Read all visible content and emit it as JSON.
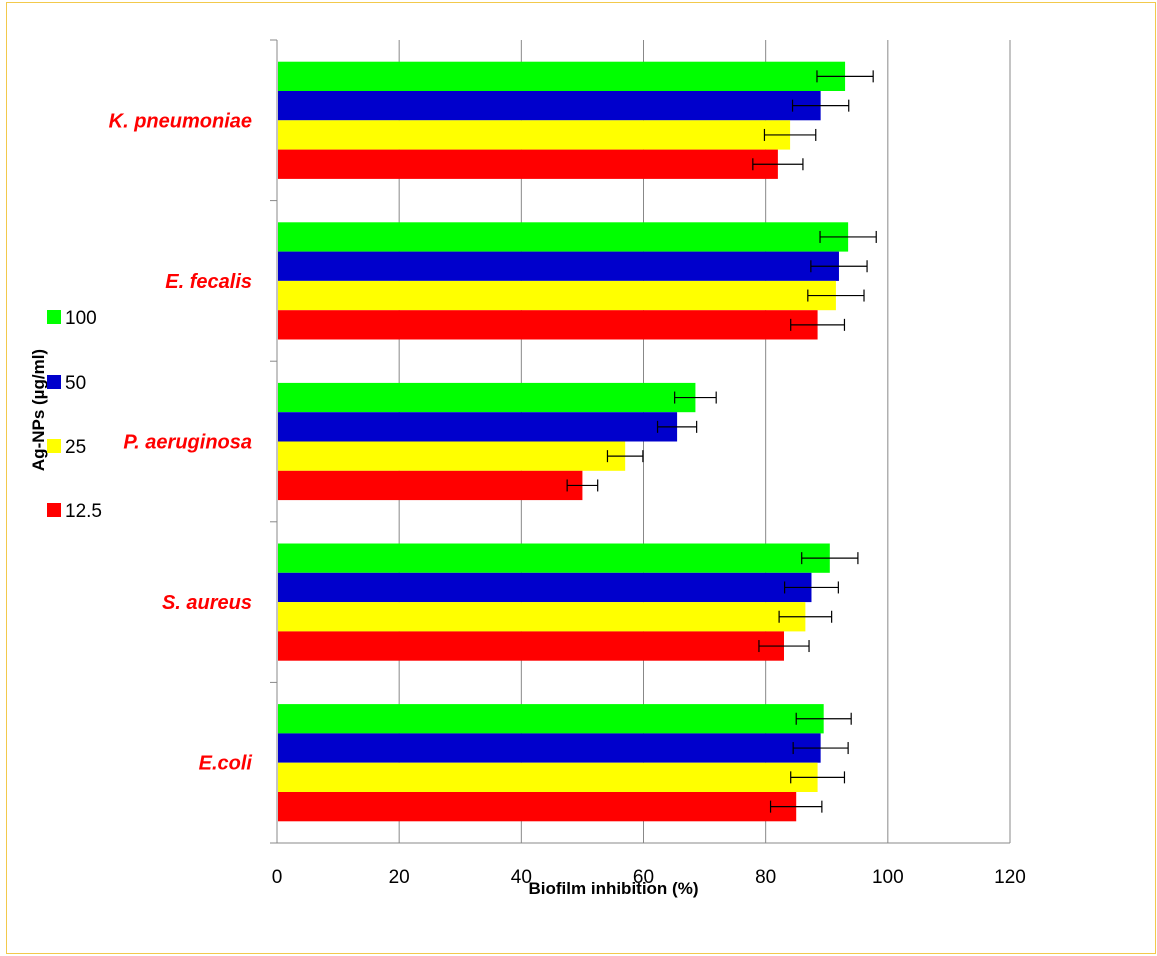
{
  "chart_data": {
    "type": "bar",
    "orientation": "horizontal",
    "categories": [
      "K. pneumoniae",
      "E. fecalis",
      "P. aeruginosa",
      "S. aureus",
      "E.coli"
    ],
    "series": [
      {
        "name": "100",
        "color": "#00ff00",
        "values": [
          93,
          93.5,
          68.5,
          90.5,
          89.5
        ],
        "errors": [
          4.6,
          4.6,
          3.4,
          4.6,
          4.5
        ]
      },
      {
        "name": "50",
        "color": "#0000cc",
        "values": [
          89,
          92,
          65.5,
          87.5,
          89
        ],
        "errors": [
          4.6,
          4.6,
          3.2,
          4.4,
          4.5
        ]
      },
      {
        "name": "25",
        "color": "#ffff00",
        "values": [
          84,
          91.5,
          57,
          86.5,
          88.5
        ],
        "errors": [
          4.2,
          4.6,
          2.9,
          4.3,
          4.4
        ]
      },
      {
        "name": "12.5",
        "color": "#ff0000",
        "values": [
          82,
          88.5,
          50,
          83,
          85
        ],
        "errors": [
          4.1,
          4.4,
          2.5,
          4.1,
          4.2
        ]
      }
    ],
    "xlabel": "Biofilm inhibition (%)",
    "legend_title": "Ag-NPs (µg/ml)",
    "xlim": [
      0,
      120
    ],
    "xticks": [
      "0",
      "20",
      "40",
      "60",
      "80",
      "100",
      "120"
    ],
    "grid": "vertical",
    "legend_position": "left"
  }
}
